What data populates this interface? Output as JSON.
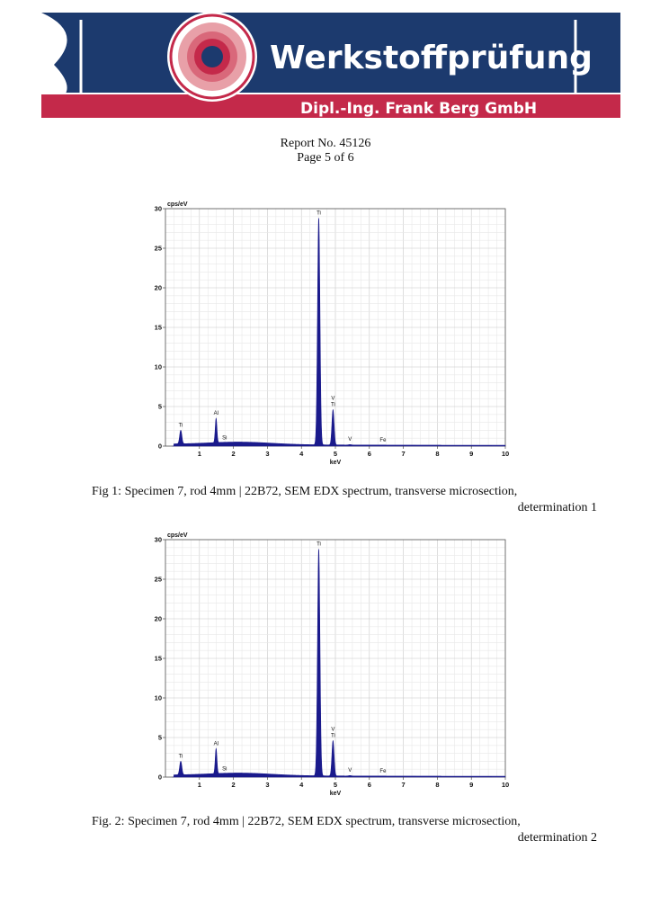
{
  "header": {
    "company_name": "Werkstoffprüfung",
    "company_subtitle": "Dipl.-Ing. Frank Berg GmbH",
    "colors": {
      "navy": "#1c3a6e",
      "crimson": "#c4294a",
      "pink": "#e8a0a8",
      "white": "#ffffff"
    }
  },
  "report": {
    "number": "Report No. 45126",
    "page": "Page 5 of 6"
  },
  "captions": [
    {
      "line1": "Fig 1: Specimen 7, rod 4mm | 22B72, SEM EDX spectrum, transverse microsection,",
      "line2": "determination 1"
    },
    {
      "line1": "Fig. 2: Specimen 7, rod 4mm | 22B72, SEM EDX spectrum, transverse microsection,",
      "line2": "determination 2"
    }
  ],
  "chart_data": [
    {
      "type": "area",
      "ylabel": "cps/eV",
      "xlabel": "keV",
      "xlim": [
        0,
        10
      ],
      "ylim": [
        0,
        30
      ],
      "xticks": [
        1,
        2,
        3,
        4,
        5,
        6,
        7,
        8,
        9,
        10
      ],
      "yticks": [
        0,
        5,
        10,
        15,
        20,
        25,
        30
      ],
      "grid": true,
      "fill_color": "#1a1a8c",
      "peaks": [
        {
          "label": "Ti",
          "x": 0.45,
          "y": 2.0
        },
        {
          "label": "Al",
          "x": 1.49,
          "y": 3.5
        },
        {
          "label": "Si",
          "x": 1.74,
          "y": 0.4
        },
        {
          "label": "Ti",
          "x": 4.51,
          "y": 28.8
        },
        {
          "label": "V\nTi",
          "x": 4.93,
          "y": 4.6
        },
        {
          "label": "V",
          "x": 5.43,
          "y": 0.2
        },
        {
          "label": "Fe",
          "x": 6.4,
          "y": 0.1
        }
      ]
    },
    {
      "type": "area",
      "ylabel": "cps/eV",
      "xlabel": "keV",
      "xlim": [
        0,
        10
      ],
      "ylim": [
        0,
        30
      ],
      "xticks": [
        1,
        2,
        3,
        4,
        5,
        6,
        7,
        8,
        9,
        10
      ],
      "yticks": [
        0,
        5,
        10,
        15,
        20,
        25,
        30
      ],
      "grid": true,
      "fill_color": "#1a1a8c",
      "peaks": [
        {
          "label": "Ti",
          "x": 0.45,
          "y": 2.0
        },
        {
          "label": "Al",
          "x": 1.49,
          "y": 3.6
        },
        {
          "label": "Si",
          "x": 1.74,
          "y": 0.4
        },
        {
          "label": "Ti",
          "x": 4.51,
          "y": 28.8
        },
        {
          "label": "V\nTi",
          "x": 4.93,
          "y": 4.6
        },
        {
          "label": "V",
          "x": 5.43,
          "y": 0.2
        },
        {
          "label": "Fe",
          "x": 6.4,
          "y": 0.1
        }
      ]
    }
  ]
}
